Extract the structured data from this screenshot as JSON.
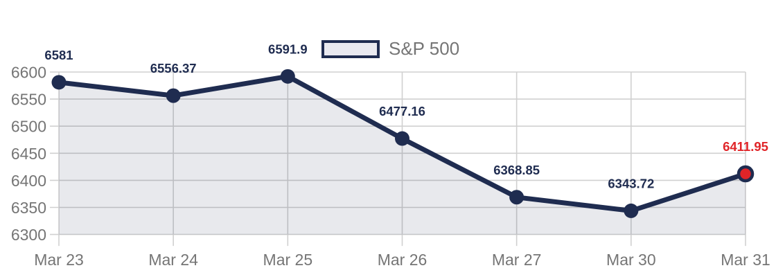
{
  "chart_data": {
    "type": "line",
    "series_name": "S&P 500",
    "categories": [
      "Mar 23",
      "Mar 24",
      "Mar 25",
      "Mar 26",
      "Mar 27",
      "Mar 30",
      "Mar 31"
    ],
    "values": [
      6581,
      6556.37,
      6591.9,
      6477.16,
      6368.85,
      6343.72,
      6411.95
    ],
    "point_labels": [
      "6581",
      "6556.37",
      "6591.9",
      "6477.16",
      "6368.85",
      "6343.72",
      "6411.95"
    ],
    "y_ticks": [
      6600,
      6550,
      6500,
      6450,
      6400,
      6350,
      6300
    ],
    "ylim": [
      6300,
      6600
    ],
    "grid": true,
    "legend_position": "top-center",
    "area_filled": true,
    "highlight_last_point": true,
    "colors": {
      "line": "#1f2c50",
      "point": "#1f2c50",
      "highlight": "#e02428",
      "highlight_label": "#e02428",
      "area_fill": "rgba(31,44,80,0.10)",
      "legend_swatch_fill": "#e9e9f0",
      "grid": "#d0d0d0",
      "axis_text": "#757575",
      "data_label": "#1f2c50",
      "background": "#ffffff"
    }
  }
}
